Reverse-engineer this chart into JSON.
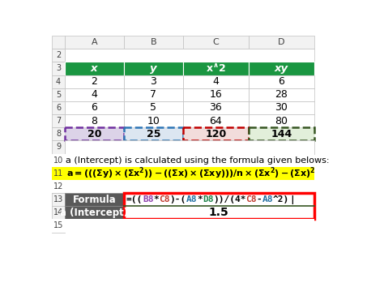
{
  "table_data": [
    [
      2,
      3,
      4,
      6
    ],
    [
      4,
      7,
      16,
      28
    ],
    [
      6,
      5,
      36,
      30
    ],
    [
      8,
      10,
      64,
      80
    ],
    [
      20,
      25,
      120,
      144
    ]
  ],
  "header_bg": "#1a9641",
  "header_text": "#ffffff",
  "sum_row_bg": [
    "#dcd3e8",
    "#dce6f1",
    "#f2dcdb",
    "#e2efda"
  ],
  "sum_row_border_colors": [
    "#7030a0",
    "#2e75b6",
    "#c00000",
    "#375623"
  ],
  "formula_label_bg": "#595959",
  "formula_label_text": "#ffffff",
  "formula_box_border": "#ff0000",
  "formula_box_inner_line": "#375623",
  "desc_text": "a (Intercept) is calculated using the formula given belows:",
  "intercept_value": "1.5",
  "fig_bg": "#ffffff",
  "excel_parts": [
    {
      "text": "=((",
      "color": "#000000"
    },
    {
      "text": "B8",
      "color": "#8e44ad"
    },
    {
      "text": "*",
      "color": "#000000"
    },
    {
      "text": "C8",
      "color": "#c0392b"
    },
    {
      "text": ")-(",
      "color": "#000000"
    },
    {
      "text": "A8",
      "color": "#2471a3"
    },
    {
      "text": "*",
      "color": "#000000"
    },
    {
      "text": "D8",
      "color": "#1e8449"
    },
    {
      "text": "))/(4*",
      "color": "#000000"
    },
    {
      "text": "C8",
      "color": "#c0392b"
    },
    {
      "text": "-",
      "color": "#000000"
    },
    {
      "text": "A8",
      "color": "#2471a3"
    },
    {
      "text": "^2)",
      "color": "#000000"
    },
    {
      "text": "|",
      "color": "#000000"
    }
  ]
}
